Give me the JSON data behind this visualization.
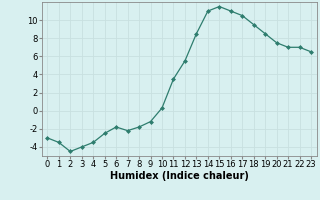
{
  "x": [
    0,
    1,
    2,
    3,
    4,
    5,
    6,
    7,
    8,
    9,
    10,
    11,
    12,
    13,
    14,
    15,
    16,
    17,
    18,
    19,
    20,
    21,
    22,
    23
  ],
  "y": [
    -3.0,
    -3.5,
    -4.5,
    -4.0,
    -3.5,
    -2.5,
    -1.8,
    -2.2,
    -1.8,
    -1.2,
    0.3,
    3.5,
    5.5,
    8.5,
    11.0,
    11.5,
    11.0,
    10.5,
    9.5,
    8.5,
    7.5,
    7.0,
    7.0,
    6.5
  ],
  "xlabel": "Humidex (Indice chaleur)",
  "ylim": [
    -5,
    12
  ],
  "xlim": [
    -0.5,
    23.5
  ],
  "yticks": [
    -4,
    -2,
    0,
    2,
    4,
    6,
    8,
    10
  ],
  "xticks": [
    0,
    1,
    2,
    3,
    4,
    5,
    6,
    7,
    8,
    9,
    10,
    11,
    12,
    13,
    14,
    15,
    16,
    17,
    18,
    19,
    20,
    21,
    22,
    23
  ],
  "line_color": "#2e7d6e",
  "marker": "D",
  "marker_size": 2.0,
  "bg_color": "#d8f0f0",
  "grid_color": "#c8e0e0",
  "axis_color": "#888888",
  "xlabel_fontsize": 7,
  "tick_fontsize": 6
}
